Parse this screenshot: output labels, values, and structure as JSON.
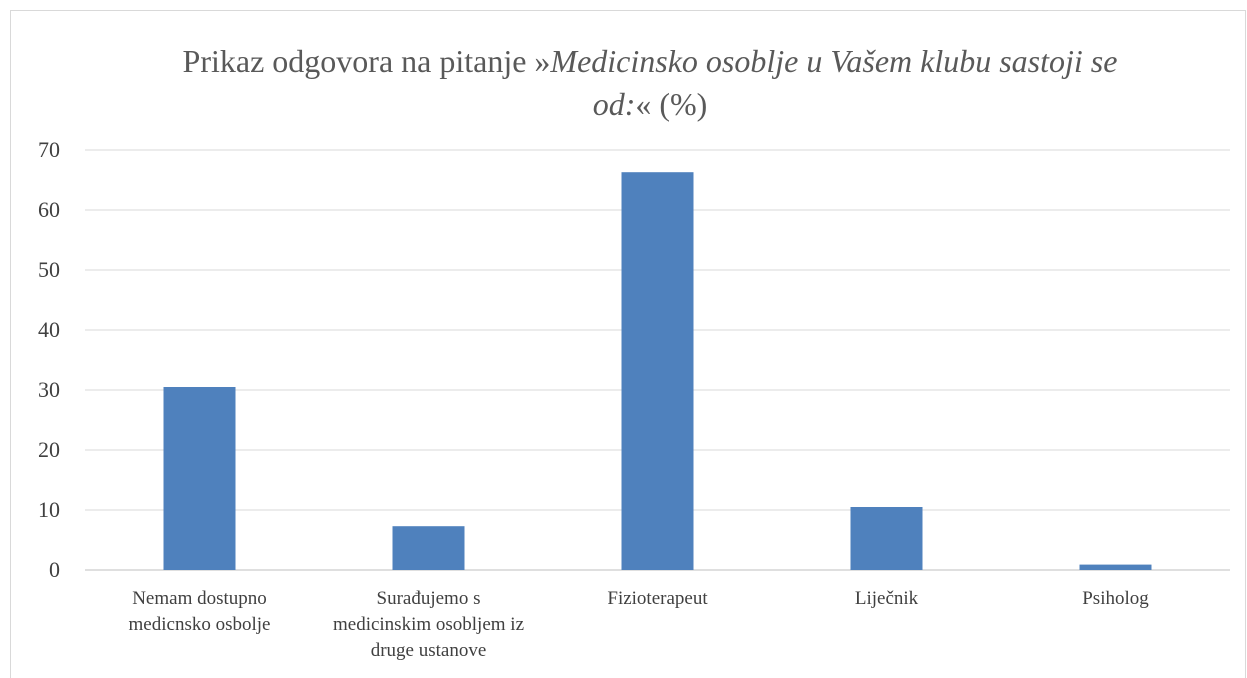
{
  "chart_data": {
    "type": "bar",
    "title": [
      {
        "text": "Prikaz odgovora na pitanje »",
        "italic": false
      },
      {
        "text": "Medicinsko osoblje u Vašem klubu sastoji se od:",
        "italic": true
      },
      {
        "text": "« (%)",
        "italic": false
      }
    ],
    "categories": [
      "Nemam dostupno medicnsko osbolje",
      "Surađujemo s medicinskim osobljem iz druge ustanove",
      "Fizioterapeut",
      "Liječnik",
      "Psiholog"
    ],
    "values": [
      30.5,
      7.3,
      66.3,
      10.5,
      0.9
    ],
    "color": "#4f81bd",
    "ylim": [
      0,
      70
    ],
    "yticks": [
      0,
      10,
      20,
      30,
      40,
      50,
      60,
      70
    ],
    "grid": true
  }
}
